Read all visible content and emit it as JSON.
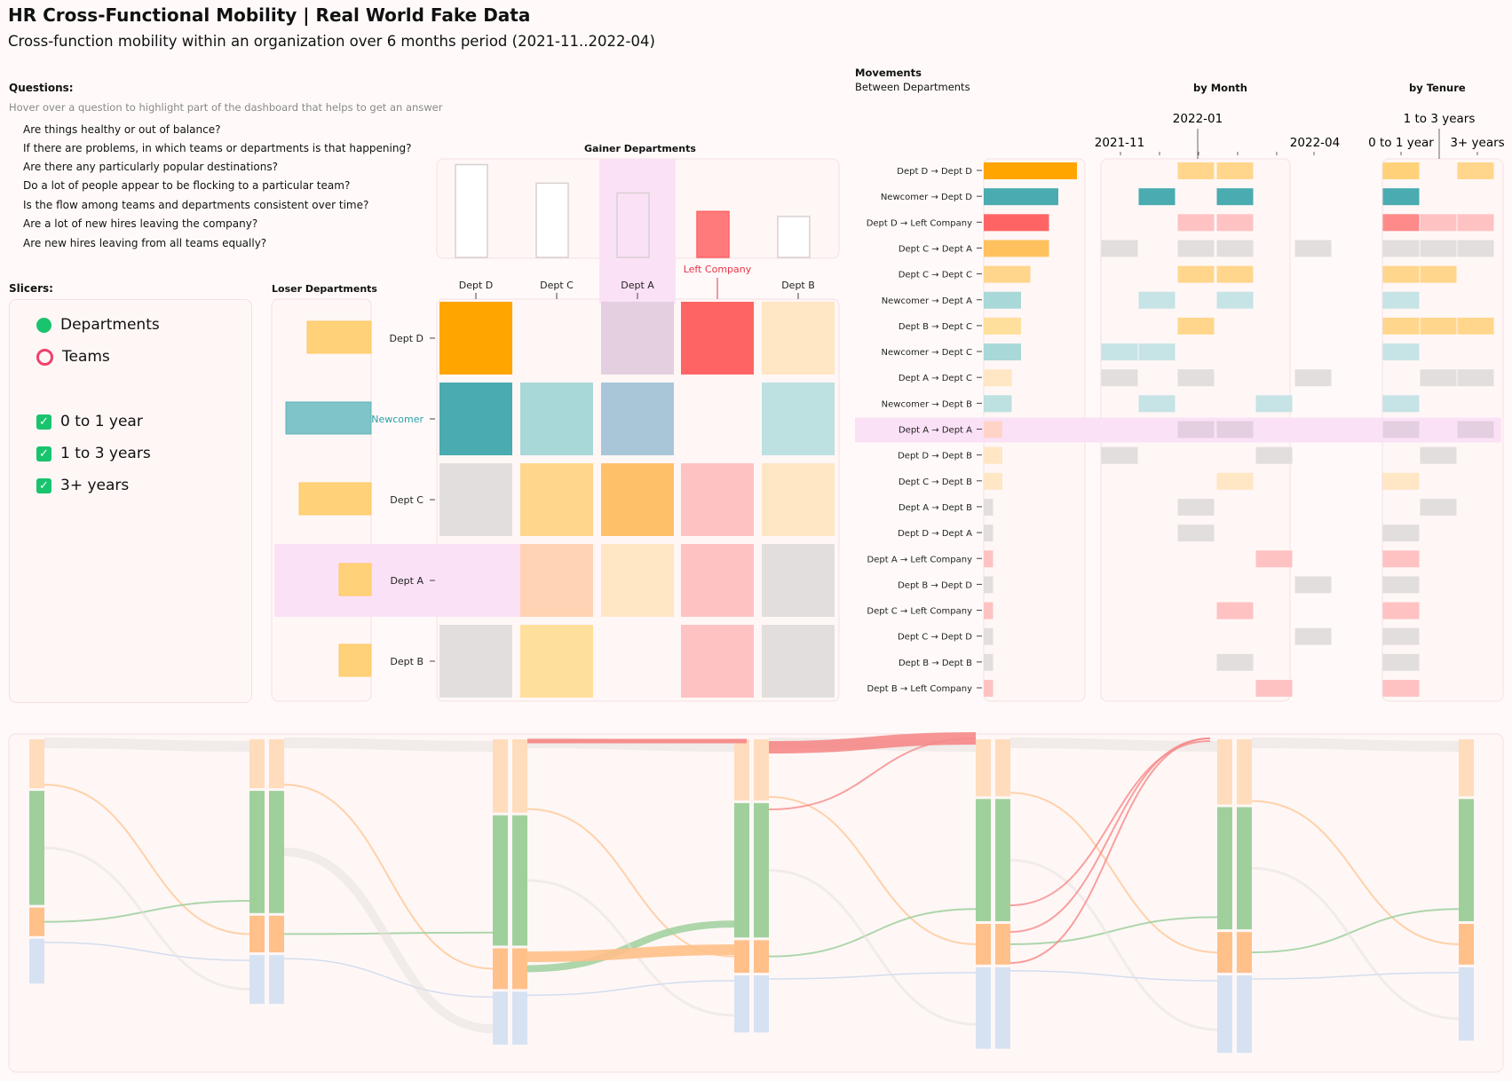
{
  "header": {
    "title": "HR Cross-Functional Mobility | Real World Fake Data",
    "subtitle": "Cross-function mobility within an organization over 6 months period (2021-11..2022-04)"
  },
  "questions": {
    "heading": "Questions:",
    "hint": "Hover over a question to highlight part of the dashboard that helps to get an answer",
    "items": [
      "Are things healthy or out of balance?",
      "If there are problems, in which teams or departments is that happening?",
      "Are there any particularly popular destinations?",
      "Do a lot of people appear to be flocking to a particular team?",
      "Is the flow among teams and departments consistent over time?",
      "Are a lot of new hires leaving the company?",
      "Are new hires leaving from all teams equally?"
    ]
  },
  "slicers": {
    "heading": "Slicers:",
    "level_options": [
      {
        "label": "Departments",
        "selected": true
      },
      {
        "label": "Teams",
        "selected": false
      }
    ],
    "tenure_options": [
      {
        "label": "0 to 1 year",
        "checked": true
      },
      {
        "label": "1 to 3 years",
        "checked": true
      },
      {
        "label": "3+ years",
        "checked": true
      }
    ]
  },
  "colors": {
    "deptD": "#ffa500",
    "newcomer": "#4aabb1",
    "left": "#ff6464",
    "deptC": "#ffcc66",
    "grey": "#e3dede",
    "highlight": "#fbe1f6",
    "sankey_green": "#9fd09c",
    "sankey_orange": "#ffc08a",
    "sankey_peach": "#ffdcbc",
    "sankey_blue": "#d6e2f2",
    "sankey_red": "#f58a8a"
  },
  "gainer": {
    "title": "Gainer Departments",
    "columns": [
      "Dept D",
      "Dept C",
      "Dept A",
      "Left Company",
      "Dept B"
    ],
    "values": [
      0.95,
      0.76,
      0.66,
      0.47,
      0.42
    ],
    "highlight_index": 2,
    "left_index": 3
  },
  "loser": {
    "title": "Loser Departments",
    "rows": [
      "Dept D",
      "Newcomer",
      "Dept C",
      "Dept A",
      "Dept B"
    ],
    "values": [
      0.72,
      0.96,
      0.81,
      0.36,
      0.36
    ],
    "highlight_index": 3,
    "newcomer_index": 1
  },
  "matrix": {
    "cells": [
      [
        "#ffa500",
        null,
        "#e3cfdf",
        "#ff6464",
        "#ffe6c4"
      ],
      [
        "#4aabb1",
        "#a9d8d8",
        "#a9c6d9",
        null,
        "#bde0e0"
      ],
      [
        "#e3dede",
        "#ffd68c",
        "#ffc06a",
        "#ffc2c2",
        "#ffe6c4"
      ],
      [
        null,
        "#ffd3b3",
        "#ffe6c4",
        "#ffc2c2",
        "#e3dede"
      ],
      [
        "#e3dede",
        "#ffdf9c",
        null,
        "#ffc2c2",
        "#e3dede"
      ]
    ]
  },
  "movements": {
    "title": "Movements",
    "subtitle": "Between Departments",
    "by_month_title": "by Month",
    "by_tenure_title": "by Tenure",
    "month_ticks": [
      "2021-11",
      "2022-01",
      "2022-04"
    ],
    "tenure_ticks": [
      "0 to 1 year",
      "1 to 3 years",
      "3+ years"
    ],
    "highlight_index": 10,
    "rows": [
      {
        "label": "Dept D → Dept D",
        "value": 1.0,
        "color": "#ffa500",
        "months": [
          0,
          0,
          1,
          1,
          0,
          0
        ],
        "tenure": [
          1,
          0,
          1
        ],
        "mcolor": "#ffd68c"
      },
      {
        "label": "Newcomer → Dept D",
        "value": 0.8,
        "color": "#4aabb1",
        "months": [
          0,
          1,
          0,
          1,
          0,
          0
        ],
        "tenure": [
          1,
          0,
          0
        ],
        "mcolor": "#4aabb1"
      },
      {
        "label": "Dept D → Left Company",
        "value": 0.7,
        "color": "#ff6464",
        "months": [
          0,
          0,
          1,
          1,
          0,
          0
        ],
        "tenure": [
          1,
          1,
          1
        ],
        "mcolor": "#ffc2c2"
      },
      {
        "label": "Dept C → Dept A",
        "value": 0.7,
        "color": "#ffc15e",
        "months": [
          1,
          0,
          1,
          1,
          0,
          1
        ],
        "tenure": [
          1,
          1,
          1
        ],
        "mcolor": "#e3dede"
      },
      {
        "label": "Dept C → Dept C",
        "value": 0.5,
        "color": "#ffd68c",
        "months": [
          0,
          0,
          1,
          1,
          0,
          0
        ],
        "tenure": [
          1,
          1,
          0
        ],
        "mcolor": "#ffd68c"
      },
      {
        "label": "Newcomer → Dept A",
        "value": 0.4,
        "color": "#a9d8d8",
        "months": [
          0,
          1,
          0,
          1,
          0,
          0
        ],
        "tenure": [
          1,
          0,
          0
        ],
        "mcolor": "#c6e3e6"
      },
      {
        "label": "Dept B → Dept C",
        "value": 0.4,
        "color": "#ffdf9c",
        "months": [
          0,
          0,
          1,
          0,
          0,
          0
        ],
        "tenure": [
          1,
          1,
          1
        ],
        "mcolor": "#ffd68c"
      },
      {
        "label": "Newcomer → Dept C",
        "value": 0.4,
        "color": "#a9d8d8",
        "months": [
          1,
          1,
          0,
          0,
          0,
          0
        ],
        "tenure": [
          1,
          0,
          0
        ],
        "mcolor": "#c6e3e6"
      },
      {
        "label": "Dept A → Dept C",
        "value": 0.3,
        "color": "#ffe6c4",
        "months": [
          1,
          0,
          1,
          0,
          0,
          1
        ],
        "tenure": [
          0,
          1,
          1
        ],
        "mcolor": "#e3dede"
      },
      {
        "label": "Newcomer → Dept B",
        "value": 0.3,
        "color": "#bde0e0",
        "months": [
          0,
          1,
          0,
          0,
          1,
          0
        ],
        "tenure": [
          1,
          0,
          0
        ],
        "mcolor": "#c6e3e6"
      },
      {
        "label": "Dept A → Dept A",
        "value": 0.2,
        "color": "#ffd3c8",
        "months": [
          0,
          0,
          1,
          1,
          0,
          0
        ],
        "tenure": [
          1,
          0,
          1
        ],
        "mcolor": "#e3cfdf"
      },
      {
        "label": "Dept D → Dept B",
        "value": 0.2,
        "color": "#ffe6c4",
        "months": [
          1,
          0,
          0,
          0,
          1,
          0
        ],
        "tenure": [
          0,
          1,
          0
        ],
        "mcolor": "#e3dede"
      },
      {
        "label": "Dept C → Dept B",
        "value": 0.2,
        "color": "#ffe6c4",
        "months": [
          0,
          0,
          0,
          1,
          0,
          0
        ],
        "tenure": [
          1,
          0,
          0
        ],
        "mcolor": "#ffe6c4"
      },
      {
        "label": "Dept A → Dept B",
        "value": 0.1,
        "color": "#e3dede",
        "months": [
          0,
          0,
          1,
          0,
          0,
          0
        ],
        "tenure": [
          0,
          1,
          0
        ],
        "mcolor": "#e3dede"
      },
      {
        "label": "Dept D → Dept A",
        "value": 0.1,
        "color": "#e3dede",
        "months": [
          0,
          0,
          1,
          0,
          0,
          0
        ],
        "tenure": [
          1,
          0,
          0
        ],
        "mcolor": "#e3dede"
      },
      {
        "label": "Dept A → Left Company",
        "value": 0.1,
        "color": "#ffc2c2",
        "months": [
          0,
          0,
          0,
          0,
          1,
          0
        ],
        "tenure": [
          1,
          0,
          0
        ],
        "mcolor": "#ffc2c2"
      },
      {
        "label": "Dept B → Dept D",
        "value": 0.1,
        "color": "#e3dede",
        "months": [
          0,
          0,
          0,
          0,
          0,
          1
        ],
        "tenure": [
          1,
          0,
          0
        ],
        "mcolor": "#e3dede"
      },
      {
        "label": "Dept C → Left Company",
        "value": 0.1,
        "color": "#ffc2c2",
        "months": [
          0,
          0,
          0,
          1,
          0,
          0
        ],
        "tenure": [
          1,
          0,
          0
        ],
        "mcolor": "#ffc2c2"
      },
      {
        "label": "Dept C → Dept D",
        "value": 0.1,
        "color": "#e3dede",
        "months": [
          0,
          0,
          0,
          0,
          0,
          1
        ],
        "tenure": [
          1,
          0,
          0
        ],
        "mcolor": "#e3dede"
      },
      {
        "label": "Dept B → Dept B",
        "value": 0.1,
        "color": "#e3dede",
        "months": [
          0,
          0,
          0,
          1,
          0,
          0
        ],
        "tenure": [
          1,
          0,
          0
        ],
        "mcolor": "#e3dede"
      },
      {
        "label": "Dept B → Left Company",
        "value": 0.1,
        "color": "#ffc2c2",
        "months": [
          0,
          0,
          0,
          0,
          1,
          0
        ],
        "tenure": [
          1,
          0,
          0
        ],
        "mcolor": "#ffc2c2"
      }
    ]
  },
  "sankey": {
    "columns": 7,
    "segments": [
      [
        0.12,
        0.28,
        0.07,
        0.11
      ],
      [
        0.12,
        0.3,
        0.09,
        0.12
      ],
      [
        0.18,
        0.32,
        0.1,
        0.13
      ],
      [
        0.15,
        0.33,
        0.08,
        0.14
      ],
      [
        0.14,
        0.3,
        0.1,
        0.2
      ],
      [
        0.16,
        0.3,
        0.1,
        0.19
      ],
      [
        0.14,
        0.3,
        0.1,
        0.18
      ]
    ]
  }
}
